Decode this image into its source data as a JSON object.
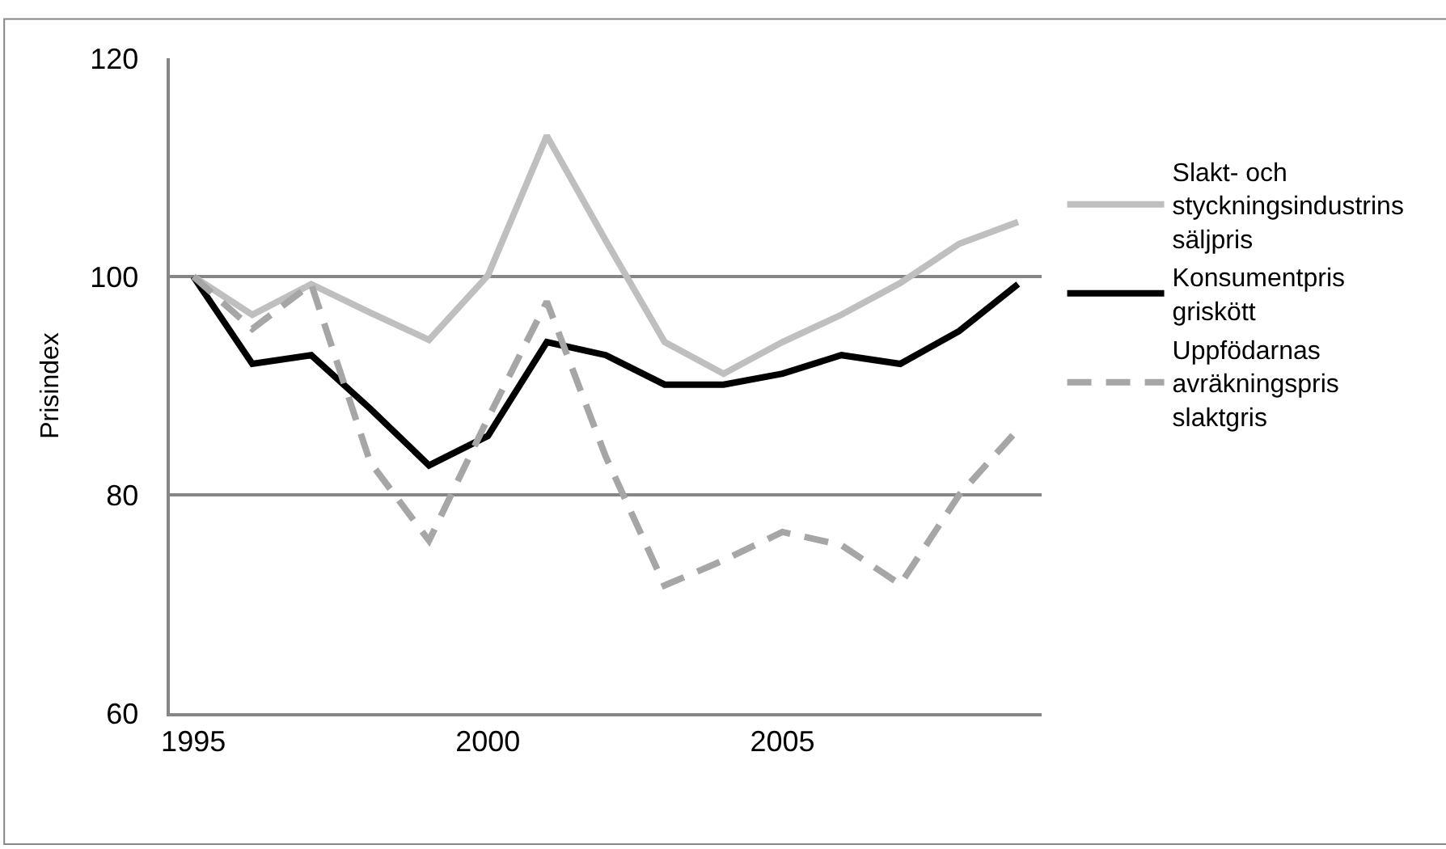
{
  "chart_data": {
    "type": "line",
    "ylabel": "Prisindex",
    "x": [
      1995,
      1996,
      1997,
      1998,
      1999,
      2000,
      2001,
      2002,
      2003,
      2004,
      2005,
      2006,
      2007,
      2008,
      2009
    ],
    "series": [
      {
        "name": "Slakt- och styckningsindustrins säljpris",
        "color": "#bfbfbf",
        "line_style": "solid",
        "values": [
          100,
          96.5,
          99.3,
          96.7,
          94.2,
          100.1,
          112.9,
          103.3,
          94.0,
          91.1,
          94.0,
          96.5,
          99.4,
          103.0,
          105.0
        ]
      },
      {
        "name": "Konsumentpris griskött",
        "color": "#000000",
        "line_style": "solid",
        "values": [
          100,
          92.0,
          92.8,
          87.9,
          82.7,
          85.4,
          94.0,
          92.8,
          90.1,
          90.1,
          91.1,
          92.8,
          92.0,
          95.0,
          99.3
        ]
      },
      {
        "name": "Uppfödarnas avräkningspris slaktgris",
        "color": "#a6a6a6",
        "line_style": "dashed",
        "values": [
          100,
          95.2,
          99.3,
          83.0,
          75.8,
          87.0,
          97.7,
          83.5,
          71.7,
          74.0,
          76.6,
          75.4,
          71.8,
          80.0,
          86.0
        ]
      }
    ],
    "xlim": [
      1994.6,
      2009.4
    ],
    "xticks": [
      1995,
      2000,
      2005
    ],
    "ylim": [
      60,
      120
    ],
    "yticks": [
      60,
      80,
      100,
      120
    ],
    "grid": "y",
    "legend": "right",
    "marker": "none"
  }
}
